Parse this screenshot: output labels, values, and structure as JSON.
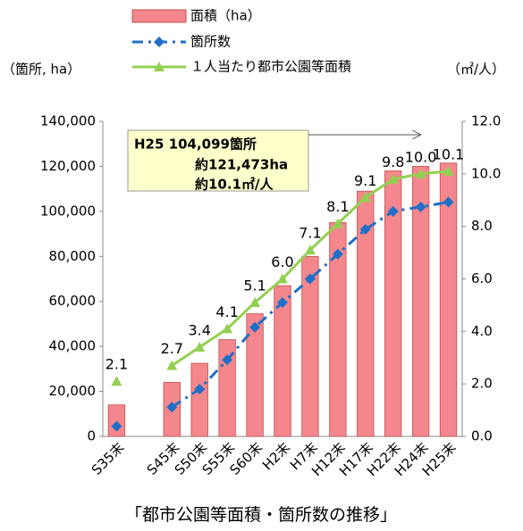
{
  "chart_data": {
    "type": "bar",
    "caption": "「都市公園等面積・箇所数の推移」",
    "y_label": "（箇所, ha）",
    "y2_label": "（㎡/人）",
    "annotation": [
      "H25  104,099箇所",
      "約121,473ha",
      "約10.1㎡/人"
    ],
    "categories": [
      "S35末",
      null,
      "S45末",
      "S50末",
      "S55末",
      "S60末",
      "H2末",
      "H7末",
      "H12末",
      "H17末",
      "H22末",
      "H24末",
      "H25末"
    ],
    "series": [
      {
        "name": "面積（ha）",
        "type": "bar",
        "color": "#f4878d",
        "values": [
          14000,
          null,
          24000,
          32500,
          43000,
          54500,
          67000,
          80000,
          95000,
          109000,
          118000,
          120000,
          121473
        ]
      },
      {
        "name": "箇所数",
        "type": "line",
        "color": "#1f6fc6",
        "dash": true,
        "values": [
          4500,
          null,
          13000,
          21000,
          34000,
          48500,
          59500,
          70000,
          81000,
          92000,
          100000,
          102000,
          104099
        ]
      },
      {
        "name": "１人当たり都市公園等面積",
        "type": "line",
        "color": "#92d050",
        "axis": "y2",
        "values": [
          2.1,
          null,
          2.7,
          3.4,
          4.1,
          5.1,
          6.0,
          7.1,
          8.1,
          9.1,
          9.8,
          10.0,
          10.1
        ],
        "value_labels": [
          "2.1",
          null,
          "2.7",
          "3.4",
          "4.1",
          "5.1",
          "6.0",
          "7.1",
          "8.1",
          "9.1",
          "9.8",
          "10.0",
          "10.1"
        ]
      }
    ],
    "ylim": [
      0,
      140000
    ],
    "yticks": [
      0,
      {
        "value": 20000,
        "label": "20,000"
      },
      {
        "value": 40000,
        "label": "40,000"
      },
      {
        "value": 60000,
        "label": "60,000"
      },
      {
        "value": 80000,
        "label": "80,000"
      },
      {
        "value": 100000,
        "label": "100,000"
      },
      {
        "value": 120000,
        "label": "120,000"
      },
      {
        "value": 140000,
        "label": "140,000"
      }
    ],
    "y2lim": [
      0,
      12
    ],
    "y2ticks": [
      {
        "value": 0,
        "label": "0.0"
      },
      {
        "value": 2,
        "label": "2.0"
      },
      {
        "value": 4,
        "label": "4.0"
      },
      {
        "value": 6,
        "label": "6.0"
      },
      {
        "value": 8,
        "label": "8.0"
      },
      {
        "value": 10,
        "label": "10.0"
      },
      {
        "value": 12,
        "label": "12.0"
      }
    ]
  }
}
